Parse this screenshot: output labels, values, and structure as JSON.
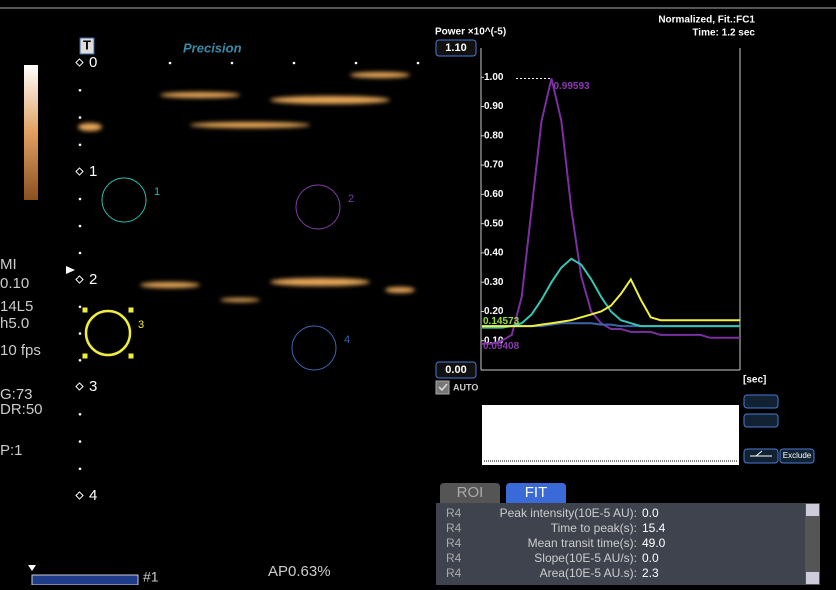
{
  "header": {
    "logo": "T",
    "preset": "Precision"
  },
  "info": [
    "MI",
    "0.10",
    "14L5",
    "h5.0",
    "10 fps",
    "G:73",
    "DR:50",
    "P:1"
  ],
  "depth_labels": [
    "0",
    "1",
    "2",
    "3",
    "4"
  ],
  "rois": [
    {
      "label": "1",
      "color": "#2ab5a8"
    },
    {
      "label": "2",
      "color": "#7a3aa0"
    },
    {
      "label": "3",
      "color": "#f0ee3c"
    },
    {
      "label": "4",
      "color": "#3a63a8"
    }
  ],
  "footer": {
    "clip": "#1",
    "ap": "AP0.63%"
  },
  "chart": {
    "type": "line",
    "y_label": "Power ×10^(-5)",
    "title": "Normalized, Fit.:FC1",
    "time": "Time: 1.2 sec",
    "x_label": "[sec]",
    "ylim": [
      0,
      1.1
    ],
    "yticks": [
      {
        "value": 0,
        "label": "0.00"
      },
      {
        "value": 0.1,
        "label": "0.10"
      },
      {
        "value": 0.2,
        "label": "0.20"
      },
      {
        "value": 0.3,
        "label": "0.30"
      },
      {
        "value": 0.4,
        "label": "0.40"
      },
      {
        "value": 0.5,
        "label": "0.50"
      },
      {
        "value": 0.6,
        "label": "0.60"
      },
      {
        "value": 0.7,
        "label": "0.70"
      },
      {
        "value": 0.8,
        "label": "0.80"
      },
      {
        "value": 0.9,
        "label": "0.90"
      },
      {
        "value": 1,
        "label": "1.00"
      },
      {
        "value": 1.1,
        "label": "1.10"
      }
    ],
    "series": [
      {
        "color": "#7a2fa0",
        "values": [
          0.09,
          0.09,
          0.1,
          0.12,
          0.25,
          0.55,
          0.85,
          0.99593,
          0.85,
          0.55,
          0.32,
          0.2,
          0.16,
          0.14,
          0.14,
          0.13,
          0.13,
          0.13,
          0.12,
          0.12,
          0.12,
          0.12,
          0.12,
          0.11,
          0.11,
          0.11,
          0.11
        ]
      },
      {
        "color": "#3a63a8",
        "values": [
          0.15,
          0.15,
          0.15,
          0.15,
          0.15,
          0.15,
          0.15,
          0.155,
          0.16,
          0.16,
          0.16,
          0.16,
          0.155,
          0.155,
          0.15,
          0.15,
          0.15,
          0.15,
          0.15,
          0.15,
          0.15,
          0.15,
          0.15,
          0.15,
          0.15,
          0.15,
          0.15
        ]
      },
      {
        "color": "#38c4b4",
        "values": [
          0.145,
          0.145,
          0.145,
          0.15,
          0.16,
          0.19,
          0.24,
          0.3,
          0.35,
          0.38,
          0.36,
          0.31,
          0.25,
          0.2,
          0.17,
          0.16,
          0.15,
          0.15,
          0.15,
          0.15,
          0.15,
          0.15,
          0.15,
          0.15,
          0.15,
          0.15,
          0.15
        ]
      },
      {
        "color": "#f0f040",
        "values": [
          0.15,
          0.15,
          0.15,
          0.15,
          0.15,
          0.15,
          0.155,
          0.16,
          0.165,
          0.17,
          0.18,
          0.19,
          0.2,
          0.22,
          0.26,
          0.31,
          0.24,
          0.18,
          0.17,
          0.17,
          0.17,
          0.17,
          0.17,
          0.17,
          0.17,
          0.17,
          0.17
        ]
      }
    ],
    "annotations": [
      {
        "label": "0.99593",
        "value": 0.99593,
        "color": "#8a3ab0"
      },
      {
        "label": "0.14573",
        "value": 0.14573,
        "color": "#9adf3a"
      },
      {
        "label": "0.09408",
        "value": 0.09408,
        "color": "#8a3ab0"
      }
    ]
  },
  "controls": {
    "auto": "AUTO",
    "exclude": "Exclude"
  },
  "tabs": [
    "ROI",
    "FIT"
  ],
  "table": {
    "rows": [
      [
        "R4",
        "Peak intensity(10E-5 AU):",
        "0.0"
      ],
      [
        "R4",
        "Time to peak(s):",
        "15.4"
      ],
      [
        "R4",
        "Mean transit time(s):",
        "49.0"
      ],
      [
        "R4",
        "Slope(10E-5 AU/s):",
        "0.0"
      ],
      [
        "R4",
        "Area(10E-5 AU.s):",
        "2.3"
      ]
    ]
  }
}
